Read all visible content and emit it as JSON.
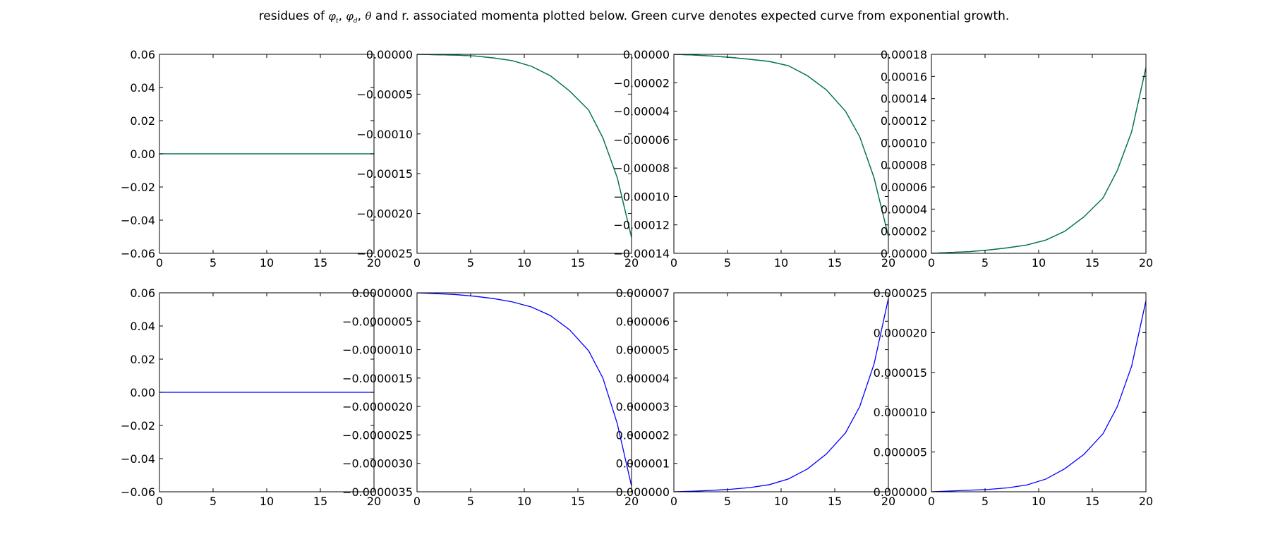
{
  "figure": {
    "title_parts": {
      "prefix": "residues of ",
      "sym1": "φ",
      "sub1": "t",
      "sep1": ", ",
      "sym2": "φ",
      "sub2": "d",
      "sep2": ", ",
      "sym3": "θ",
      "suffix": " and r. associated momenta plotted below. Green curve denotes expected curve from exponential growth."
    }
  },
  "chart_data": [
    {
      "type": "line",
      "row": 0,
      "col": 0,
      "xlim": [
        0,
        20
      ],
      "ylim": [
        -0.06,
        0.06
      ],
      "xticks": [
        0,
        5,
        10,
        15,
        20
      ],
      "xtick_labels": [
        "0",
        "5",
        "10",
        "15",
        "20"
      ],
      "yticks": [
        -0.06,
        -0.04,
        -0.02,
        0,
        0.02,
        0.04,
        0.06
      ],
      "ytick_labels": [
        "−0.06",
        "−0.04",
        "−0.02",
        "0.00",
        "0.02",
        "0.04",
        "0.06"
      ],
      "series": [
        {
          "color": "#0000ff",
          "x": [
            0,
            1.78,
            3.56,
            5.33,
            7.11,
            8.89,
            10.67,
            12.44,
            14.22,
            16,
            17.78,
            20
          ],
          "y": [
            0,
            0,
            0,
            0,
            0,
            0,
            0,
            0,
            0,
            0,
            0,
            0
          ]
        },
        {
          "color": "#007f3f",
          "x": [
            0,
            1.78,
            3.56,
            5.33,
            7.11,
            8.89,
            10.67,
            12.44,
            14.22,
            16,
            17.78,
            20
          ],
          "y": [
            0,
            0,
            0,
            0,
            0,
            0,
            0,
            0,
            0,
            0,
            0,
            0
          ]
        }
      ]
    },
    {
      "type": "line",
      "row": 0,
      "col": 1,
      "xlim": [
        0,
        20
      ],
      "ylim": [
        -0.00025,
        0
      ],
      "xticks": [
        0,
        5,
        10,
        15,
        20
      ],
      "xtick_labels": [
        "0",
        "5",
        "10",
        "15",
        "20"
      ],
      "yticks": [
        -0.00025,
        -0.0002,
        -0.00015,
        -0.0001,
        -5e-05,
        0
      ],
      "ytick_labels": [
        "−0.00025",
        "−0.00020",
        "−0.00015",
        "−0.00010",
        "−0.00005",
        "0.00000"
      ],
      "series": [
        {
          "color": "#0000ff",
          "x": [
            0,
            1.78,
            3.56,
            5.33,
            7.11,
            8.89,
            10.67,
            12.44,
            14.22,
            16,
            17.33,
            18.67,
            20
          ],
          "y": [
            0,
            -5e-07,
            -1e-06,
            -2e-06,
            -4.5e-06,
            -8e-06,
            -1.5e-05,
            -2.7e-05,
            -4.6e-05,
            -7e-05,
            -0.000105,
            -0.000155,
            -0.00023
          ]
        },
        {
          "color": "#007f3f",
          "x": [
            0,
            1.78,
            3.56,
            5.33,
            7.11,
            8.89,
            10.67,
            12.44,
            14.22,
            16,
            17.33,
            18.67,
            20
          ],
          "y": [
            0,
            -5e-07,
            -1e-06,
            -2e-06,
            -4.5e-06,
            -8e-06,
            -1.5e-05,
            -2.7e-05,
            -4.6e-05,
            -7e-05,
            -0.000105,
            -0.000155,
            -0.00023
          ]
        }
      ]
    },
    {
      "type": "line",
      "row": 0,
      "col": 2,
      "xlim": [
        0,
        20
      ],
      "ylim": [
        -0.00014,
        0
      ],
      "xticks": [
        0,
        5,
        10,
        15,
        20
      ],
      "xtick_labels": [
        "0",
        "5",
        "10",
        "15",
        "20"
      ],
      "yticks": [
        -0.00014,
        -0.00012,
        -0.0001,
        -8e-05,
        -6e-05,
        -4e-05,
        -2e-05,
        0
      ],
      "ytick_labels": [
        "−0.00014",
        "−0.00012",
        "−0.00010",
        "−0.00008",
        "−0.00006",
        "−0.00004",
        "−0.00002",
        "0.00000"
      ],
      "series": [
        {
          "color": "#0000ff",
          "x": [
            0,
            1.78,
            3.56,
            5.33,
            7.11,
            8.89,
            10.67,
            12.44,
            14.22,
            16,
            17.33,
            18.67,
            20
          ],
          "y": [
            0,
            -5e-07,
            -1.2e-06,
            -2.2e-06,
            -3.5e-06,
            -5e-06,
            -8e-06,
            -1.5e-05,
            -2.5e-05,
            -4e-05,
            -5.8e-05,
            -8.7e-05,
            -0.000128
          ]
        },
        {
          "color": "#007f3f",
          "x": [
            0,
            1.78,
            3.56,
            5.33,
            7.11,
            8.89,
            10.67,
            12.44,
            14.22,
            16,
            17.33,
            18.67,
            20
          ],
          "y": [
            0,
            -5e-07,
            -1.2e-06,
            -2.2e-06,
            -3.5e-06,
            -5e-06,
            -8e-06,
            -1.5e-05,
            -2.5e-05,
            -4e-05,
            -5.8e-05,
            -8.7e-05,
            -0.000128
          ]
        }
      ]
    },
    {
      "type": "line",
      "row": 0,
      "col": 3,
      "xlim": [
        0,
        20
      ],
      "ylim": [
        0,
        0.00018
      ],
      "xticks": [
        0,
        5,
        10,
        15,
        20
      ],
      "xtick_labels": [
        "0",
        "5",
        "10",
        "15",
        "20"
      ],
      "yticks": [
        0,
        2e-05,
        4e-05,
        6e-05,
        8e-05,
        0.0001,
        0.00012,
        0.00014,
        0.00016,
        0.00018
      ],
      "ytick_labels": [
        "0.00000",
        "0.00002",
        "0.00004",
        "0.00006",
        "0.00008",
        "0.00010",
        "0.00012",
        "0.00014",
        "0.00016",
        "0.00018"
      ],
      "series": [
        {
          "color": "#0000ff",
          "x": [
            0,
            1.78,
            3.56,
            5.33,
            7.11,
            8.89,
            10.67,
            12.44,
            14.22,
            16,
            17.33,
            18.67,
            20
          ],
          "y": [
            0,
            8e-07,
            1.5e-06,
            3e-06,
            5e-06,
            7.5e-06,
            1.2e-05,
            2e-05,
            3.3e-05,
            5e-05,
            7.5e-05,
            0.00011,
            0.000168
          ]
        },
        {
          "color": "#007f3f",
          "x": [
            0,
            1.78,
            3.56,
            5.33,
            7.11,
            8.89,
            10.67,
            12.44,
            14.22,
            16,
            17.33,
            18.67,
            20
          ],
          "y": [
            0,
            8e-07,
            1.5e-06,
            3e-06,
            5e-06,
            7.5e-06,
            1.2e-05,
            2e-05,
            3.3e-05,
            5e-05,
            7.5e-05,
            0.00011,
            0.000168
          ]
        }
      ]
    },
    {
      "type": "line",
      "row": 1,
      "col": 0,
      "xlim": [
        0,
        20
      ],
      "ylim": [
        -0.06,
        0.06
      ],
      "xticks": [
        0,
        5,
        10,
        15,
        20
      ],
      "xtick_labels": [
        "0",
        "5",
        "10",
        "15",
        "20"
      ],
      "yticks": [
        -0.06,
        -0.04,
        -0.02,
        0,
        0.02,
        0.04,
        0.06
      ],
      "ytick_labels": [
        "−0.06",
        "−0.04",
        "−0.02",
        "0.00",
        "0.02",
        "0.04",
        "0.06"
      ],
      "series": [
        {
          "color": "#0000ff",
          "x": [
            0,
            1.78,
            3.56,
            5.33,
            7.11,
            8.89,
            10.67,
            12.44,
            14.22,
            16,
            17.78,
            20
          ],
          "y": [
            0,
            0,
            0,
            0,
            0,
            0,
            0,
            0,
            0,
            0,
            0,
            0
          ]
        }
      ]
    },
    {
      "type": "line",
      "row": 1,
      "col": 1,
      "xlim": [
        0,
        20
      ],
      "ylim": [
        -3.5e-06,
        0
      ],
      "xticks": [
        0,
        5,
        10,
        15,
        20
      ],
      "xtick_labels": [
        "0",
        "5",
        "10",
        "15",
        "20"
      ],
      "yticks": [
        -3.5e-06,
        -3e-06,
        -2.5e-06,
        -2e-06,
        -1.5e-06,
        -1e-06,
        -5e-07,
        0
      ],
      "ytick_labels": [
        "−0.0000035",
        "−0.0000030",
        "−0.0000025",
        "−0.0000020",
        "−0.0000015",
        "−0.0000010",
        "−0.0000005",
        "0.0000000"
      ],
      "series": [
        {
          "color": "#0000ff",
          "x": [
            0,
            1.78,
            3.56,
            5.33,
            7.11,
            8.89,
            10.67,
            12.44,
            14.22,
            16,
            17.33,
            18.67,
            20
          ],
          "y": [
            0,
            -1.5e-08,
            -3e-08,
            -6e-08,
            -1e-07,
            -1.6e-07,
            -2.5e-07,
            -4e-07,
            -6.5e-07,
            -1.02e-06,
            -1.5e-06,
            -2.3e-06,
            -3.4e-06
          ]
        }
      ]
    },
    {
      "type": "line",
      "row": 1,
      "col": 2,
      "xlim": [
        0,
        20
      ],
      "ylim": [
        0,
        7e-06
      ],
      "xticks": [
        0,
        5,
        10,
        15,
        20
      ],
      "xtick_labels": [
        "0",
        "5",
        "10",
        "15",
        "20"
      ],
      "yticks": [
        0,
        1e-06,
        2e-06,
        3e-06,
        4e-06,
        5e-06,
        6e-06,
        7e-06
      ],
      "ytick_labels": [
        "0.000000",
        "0.000001",
        "0.000002",
        "0.000003",
        "0.000004",
        "0.000005",
        "0.000006",
        "0.000007"
      ],
      "series": [
        {
          "color": "#0000ff",
          "x": [
            0,
            1.78,
            3.56,
            5.33,
            7.11,
            8.89,
            10.67,
            12.44,
            14.22,
            16,
            17.33,
            18.67,
            20
          ],
          "y": [
            0,
            2e-08,
            5e-08,
            9e-08,
            1.5e-07,
            2.5e-07,
            4.5e-07,
            8e-07,
            1.33e-06,
            2.07e-06,
            3e-06,
            4.5e-06,
            6.8e-06
          ]
        }
      ]
    },
    {
      "type": "line",
      "row": 1,
      "col": 3,
      "xlim": [
        0,
        20
      ],
      "ylim": [
        0,
        2.5e-05
      ],
      "xticks": [
        0,
        5,
        10,
        15,
        20
      ],
      "xtick_labels": [
        "0",
        "5",
        "10",
        "15",
        "20"
      ],
      "yticks": [
        0,
        5e-06,
        1e-05,
        1.5e-05,
        2e-05,
        2.5e-05
      ],
      "ytick_labels": [
        "0.000000",
        "0.000005",
        "0.000010",
        "0.000015",
        "0.000020",
        "0.000025"
      ],
      "series": [
        {
          "color": "#0000ff",
          "x": [
            0,
            1.78,
            3.56,
            5.33,
            7.11,
            8.89,
            10.67,
            12.44,
            14.22,
            16,
            17.33,
            18.67,
            20
          ],
          "y": [
            0,
            1e-07,
            2e-07,
            3e-07,
            5e-07,
            8.5e-07,
            1.6e-06,
            2.9e-06,
            4.7e-06,
            7.3e-06,
            1.07e-05,
            1.58e-05,
            2.4e-05
          ]
        }
      ]
    }
  ]
}
